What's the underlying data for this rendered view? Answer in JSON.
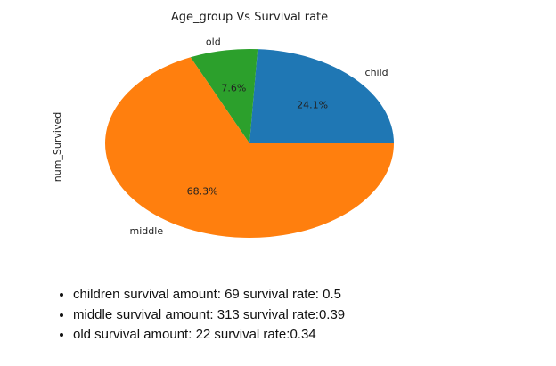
{
  "chart_data": {
    "type": "pie",
    "title": "Age_group Vs Survival rate",
    "ylabel": "num_Survived",
    "categories": [
      "child",
      "old",
      "middle"
    ],
    "values": [
      24.1,
      7.6,
      68.3
    ],
    "percent_labels": [
      "24.1%",
      "7.6%",
      "68.3%"
    ],
    "colors": [
      "#1f77b4",
      "#2ca02c",
      "#ff7f0e"
    ]
  },
  "notes": [
    "children survival amount: 69 survival rate: 0.5",
    "middle survival amount: 313 survival rate:0.39",
    "old survival amount: 22 survival rate:0.34"
  ]
}
